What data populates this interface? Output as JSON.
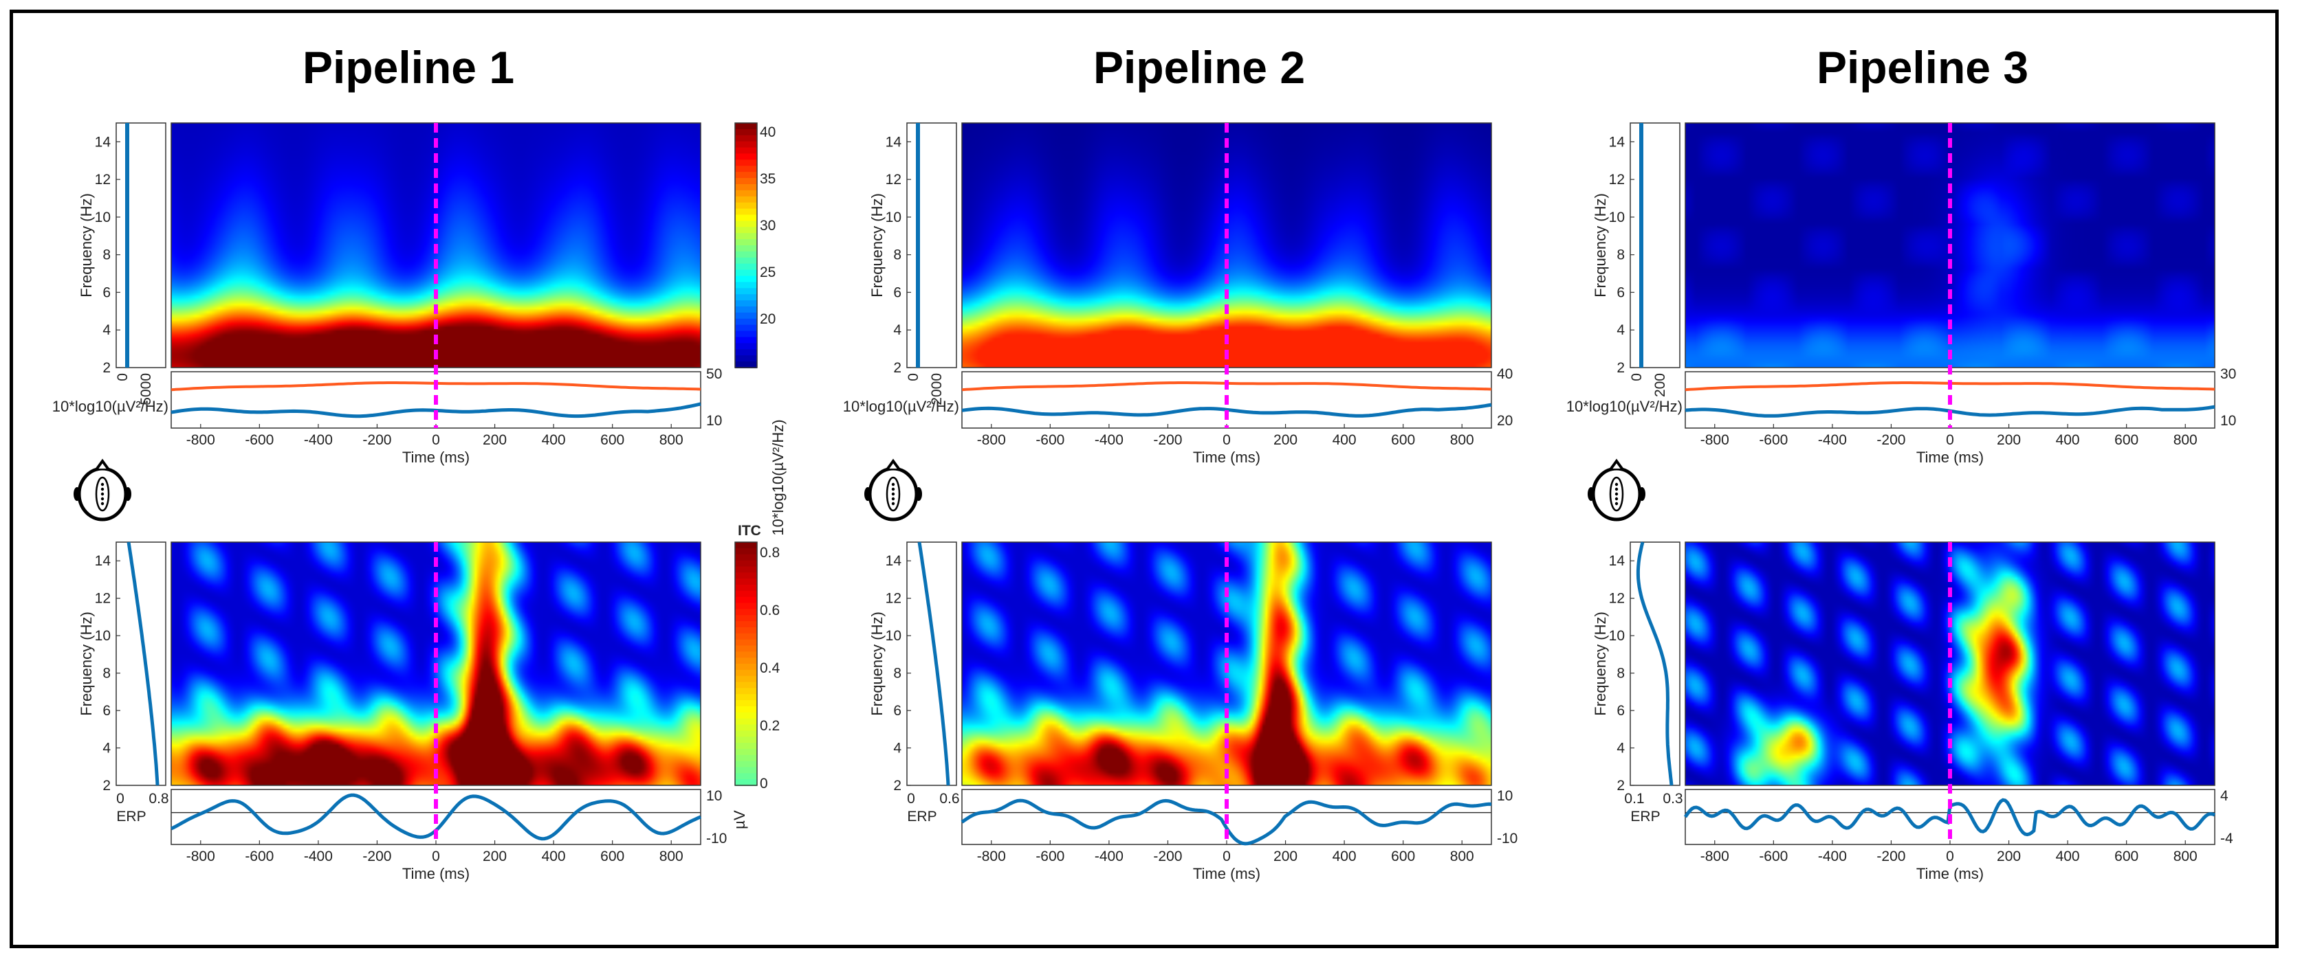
{
  "figure": {
    "pipelines": [
      {
        "title": "Pipeline 1",
        "ersp": {
          "freq_ticks": [
            "2",
            "4",
            "6",
            "8",
            "10",
            "12",
            "14"
          ],
          "ylabel": "Frequency (Hz)",
          "side_ticks": [
            "0",
            "5000"
          ],
          "colorbar_ticks": [
            "40",
            "35",
            "30",
            "25",
            "20"
          ],
          "colorbar_label": "10*log10(µV²/Hz)",
          "below_ticks": [
            "50",
            "10"
          ],
          "below_label": "10*log10(µV²/Hz)",
          "intensity": 1.0
        },
        "itc": {
          "freq_ticks": [
            "2",
            "4",
            "6",
            "8",
            "10",
            "12",
            "14"
          ],
          "ylabel": "Frequency (Hz)",
          "side_ticks": [
            "0",
            "0.8"
          ],
          "side_label": "ERP",
          "colorbar_title": "ITC",
          "colorbar_ticks": [
            "0.8",
            "0.6",
            "0.4",
            "0.2",
            "0"
          ],
          "erp_ticks": [
            "10",
            "-10"
          ],
          "erp_unit": "µV",
          "intensity": 1.0
        }
      },
      {
        "title": "Pipeline 2",
        "ersp": {
          "freq_ticks": [
            "2",
            "4",
            "6",
            "8",
            "10",
            "12",
            "14"
          ],
          "ylabel": "Frequency (Hz)",
          "side_ticks": [
            "0",
            "2000"
          ],
          "below_ticks": [
            "40",
            "20"
          ],
          "below_label": "10*log10(µV²/Hz)",
          "intensity": 0.8
        },
        "itc": {
          "freq_ticks": [
            "2",
            "4",
            "6",
            "8",
            "10",
            "12",
            "14"
          ],
          "ylabel": "Frequency (Hz)",
          "side_ticks": [
            "0",
            "0.6"
          ],
          "side_label": "ERP",
          "erp_ticks": [
            "10",
            "-10"
          ],
          "intensity": 0.85
        }
      },
      {
        "title": "Pipeline 3",
        "ersp": {
          "freq_ticks": [
            "2",
            "4",
            "6",
            "8",
            "10",
            "12",
            "14"
          ],
          "ylabel": "Frequency (Hz)",
          "side_ticks": [
            "0",
            "200"
          ],
          "below_ticks": [
            "30",
            "10"
          ],
          "below_label": "10*log10(µV²/Hz)",
          "intensity": 0.35
        },
        "itc": {
          "freq_ticks": [
            "2",
            "4",
            "6",
            "8",
            "10",
            "12",
            "14"
          ],
          "ylabel": "Frequency (Hz)",
          "side_ticks": [
            "0.1",
            "0.3"
          ],
          "side_label": "ERP",
          "erp_ticks": [
            "4",
            "-4"
          ],
          "intensity": 0.7
        }
      }
    ],
    "time_ticks": [
      "-800",
      "-600",
      "-400",
      "-200",
      "0",
      "200",
      "400",
      "600",
      "800"
    ],
    "time_label": "Time (ms)",
    "colors": {
      "onset_line": "#ff00ff",
      "trace": "#0a72b5",
      "baseline_trace": "#ff5a1f",
      "frame": "#000000"
    }
  }
}
